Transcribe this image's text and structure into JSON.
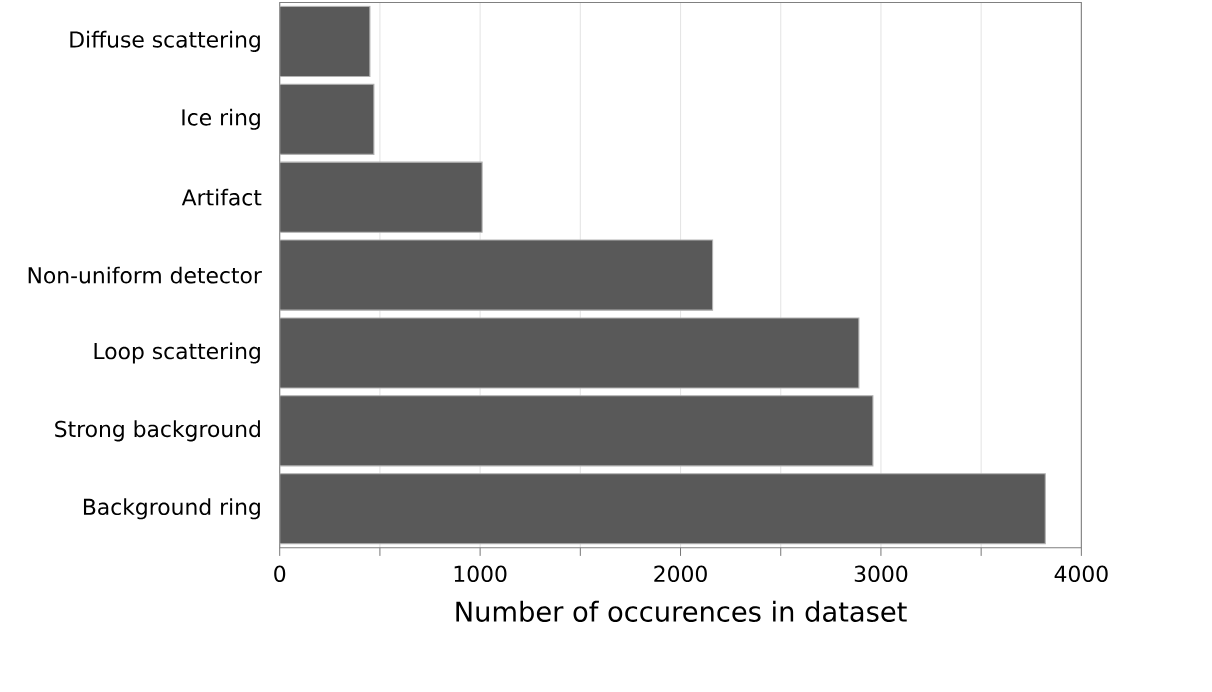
{
  "chart_data": {
    "type": "bar",
    "orientation": "horizontal",
    "xlabel": "Number of occurences in dataset",
    "categories": [
      "Diffuse scattering",
      "Ice ring",
      "Artifact",
      "Non-uniform detector",
      "Loop scattering",
      "Strong background",
      "Background ring"
    ],
    "values": [
      450,
      470,
      1010,
      2160,
      2890,
      2960,
      3820
    ],
    "color": "#595959",
    "xlim": [
      0,
      4000
    ],
    "xticks": [
      0,
      {
        "value": 500,
        "label": null
      },
      1000,
      {
        "value": 1500,
        "label": null
      },
      2000,
      {
        "value": 2500,
        "label": null
      },
      3000,
      {
        "value": 3500,
        "label": null
      },
      4000
    ],
    "grid": "x"
  }
}
